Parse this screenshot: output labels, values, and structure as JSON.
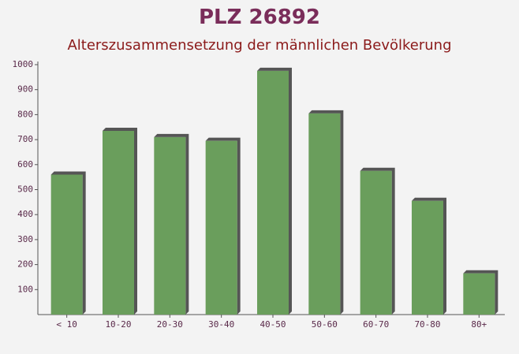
{
  "chart_data": {
    "type": "bar",
    "title": "PLZ 26892",
    "subtitle": "Alterszusammensetzung der männlichen Bevölkerung",
    "categories": [
      "< 10",
      "10-20",
      "20-30",
      "30-40",
      "40-50",
      "50-60",
      "60-70",
      "70-80",
      "80+"
    ],
    "values": [
      560,
      735,
      710,
      695,
      975,
      805,
      575,
      455,
      165
    ],
    "color": "#6a9e5c",
    "ylim": [
      0,
      1000
    ],
    "yticks": [
      100,
      200,
      300,
      400,
      500,
      600,
      700,
      800,
      900,
      1000
    ]
  }
}
